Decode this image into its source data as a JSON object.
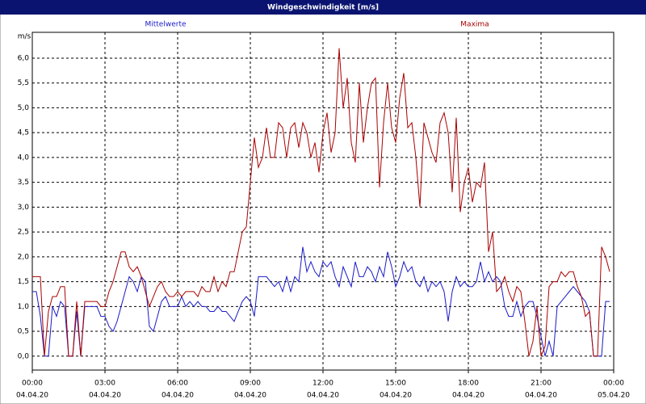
{
  "chart_data": {
    "type": "line",
    "title": "Windgeschwindigkeit [m/s]",
    "y_label": "m/s",
    "x": [
      0,
      10,
      20,
      30,
      40,
      50,
      60,
      70,
      80,
      90,
      100,
      110,
      120,
      130,
      140,
      150,
      160,
      170,
      180,
      190,
      200,
      210,
      220,
      230,
      240,
      250,
      260,
      270,
      280,
      290,
      300,
      310,
      320,
      330,
      340,
      350,
      360,
      370,
      380,
      390,
      400,
      410,
      420,
      430,
      440,
      450,
      460,
      470,
      480,
      490,
      500,
      510,
      520,
      530,
      540,
      550,
      560,
      570,
      580,
      590,
      600,
      610,
      620,
      630,
      640,
      650,
      660,
      670,
      680,
      690,
      700,
      710,
      720,
      730,
      740,
      750,
      760,
      770,
      780,
      790,
      800,
      810,
      820,
      830,
      840,
      850,
      860,
      870,
      880,
      890,
      900,
      910,
      920,
      930,
      940,
      950,
      960,
      970,
      980,
      990,
      1000,
      1010,
      1020,
      1030,
      1040,
      1050,
      1060,
      1070,
      1080,
      1090,
      1100,
      1110,
      1120,
      1130,
      1140,
      1150,
      1160,
      1170,
      1180,
      1190,
      1200,
      1210,
      1220,
      1230,
      1240,
      1250,
      1260,
      1270,
      1280,
      1290,
      1300,
      1310,
      1320,
      1330,
      1340,
      1350,
      1360,
      1370,
      1380,
      1390,
      1400,
      1410,
      1420,
      1430
    ],
    "series": [
      {
        "name": "Mittelwerte",
        "color": "#1a1ac8",
        "values": [
          1.3,
          1.3,
          0.8,
          0.0,
          0.0,
          1.0,
          0.8,
          1.1,
          1.0,
          0.0,
          0.0,
          0.9,
          0.0,
          1.0,
          1.0,
          1.0,
          1.0,
          0.8,
          0.8,
          0.6,
          0.5,
          0.7,
          1.0,
          1.3,
          1.6,
          1.5,
          1.3,
          1.6,
          1.5,
          0.6,
          0.5,
          0.8,
          1.1,
          1.2,
          1.0,
          1.0,
          1.0,
          1.2,
          1.0,
          1.1,
          1.0,
          1.1,
          1.0,
          1.0,
          0.9,
          0.9,
          1.0,
          0.9,
          0.9,
          0.8,
          0.7,
          0.9,
          1.1,
          1.2,
          1.1,
          0.8,
          1.6,
          1.6,
          1.6,
          1.5,
          1.4,
          1.5,
          1.3,
          1.6,
          1.3,
          1.6,
          1.5,
          2.2,
          1.7,
          1.9,
          1.7,
          1.6,
          1.9,
          1.8,
          1.9,
          1.6,
          1.4,
          1.8,
          1.6,
          1.4,
          1.9,
          1.6,
          1.6,
          1.8,
          1.7,
          1.5,
          1.8,
          1.6,
          2.1,
          1.8,
          1.4,
          1.6,
          1.9,
          1.7,
          1.8,
          1.5,
          1.4,
          1.6,
          1.3,
          1.5,
          1.4,
          1.5,
          1.3,
          0.7,
          1.3,
          1.6,
          1.4,
          1.5,
          1.4,
          1.4,
          1.5,
          1.9,
          1.5,
          1.7,
          1.5,
          1.6,
          1.5,
          1.0,
          0.8,
          0.8,
          1.1,
          0.8,
          1.0,
          1.1,
          1.1,
          0.8,
          0.4,
          0.0,
          0.3,
          0.0,
          1.0,
          1.1,
          1.2,
          1.3,
          1.4,
          1.3,
          1.2,
          1.1,
          0.9,
          0.0,
          0.0,
          0.0,
          1.1,
          1.1
        ]
      },
      {
        "name": "Maxima",
        "color": "#a80000",
        "values": [
          1.6,
          1.6,
          1.6,
          0.0,
          0.9,
          1.2,
          1.2,
          1.4,
          1.4,
          0.0,
          0.0,
          1.1,
          0.0,
          1.1,
          1.1,
          1.1,
          1.1,
          1.0,
          1.0,
          1.3,
          1.5,
          1.8,
          2.1,
          2.1,
          1.8,
          1.7,
          1.8,
          1.6,
          1.3,
          1.0,
          1.2,
          1.4,
          1.5,
          1.3,
          1.2,
          1.2,
          1.3,
          1.2,
          1.3,
          1.3,
          1.3,
          1.2,
          1.4,
          1.3,
          1.3,
          1.6,
          1.3,
          1.5,
          1.4,
          1.7,
          1.7,
          2.1,
          2.5,
          2.6,
          3.5,
          4.4,
          3.8,
          4.0,
          4.6,
          4.0,
          4.0,
          4.7,
          4.6,
          4.0,
          4.6,
          4.7,
          4.2,
          4.7,
          4.5,
          4.0,
          4.3,
          3.7,
          4.5,
          4.9,
          4.1,
          4.5,
          6.2,
          5.0,
          5.6,
          4.3,
          3.9,
          5.5,
          4.3,
          5.0,
          5.5,
          5.6,
          3.4,
          4.7,
          5.5,
          4.6,
          4.3,
          5.2,
          5.7,
          4.6,
          4.7,
          4.0,
          3.0,
          4.7,
          4.4,
          4.1,
          3.9,
          4.7,
          4.9,
          4.5,
          3.3,
          4.8,
          2.9,
          3.5,
          3.8,
          3.1,
          3.5,
          3.4,
          3.9,
          2.1,
          2.5,
          1.3,
          1.4,
          1.6,
          1.3,
          1.1,
          1.4,
          1.3,
          0.7,
          0.0,
          0.3,
          1.0,
          0.0,
          0.2,
          1.4,
          1.5,
          1.5,
          1.7,
          1.6,
          1.7,
          1.7,
          1.4,
          1.2,
          0.8,
          0.9,
          0.0,
          0.0,
          2.2,
          2.0,
          1.7
        ]
      }
    ],
    "xlim": [
      0,
      1440
    ],
    "xticks": [
      {
        "value": 0,
        "label": "00:00",
        "date": "04.04.20"
      },
      {
        "value": 180,
        "label": "03:00",
        "date": "04.04.20"
      },
      {
        "value": 360,
        "label": "06:00",
        "date": "04.04.20"
      },
      {
        "value": 540,
        "label": "09:00",
        "date": "04.04.20"
      },
      {
        "value": 720,
        "label": "12:00",
        "date": "04.04.20"
      },
      {
        "value": 900,
        "label": "15:00",
        "date": "04.04.20"
      },
      {
        "value": 1080,
        "label": "18:00",
        "date": "04.04.20"
      },
      {
        "value": 1260,
        "label": "21:00",
        "date": "04.04.20"
      },
      {
        "value": 1440,
        "label": "00:00",
        "date": "05.04.20"
      }
    ],
    "ylim": [
      -0.28,
      6.52
    ],
    "yticks": [
      {
        "value": 0,
        "label": "0,0"
      },
      {
        "value": 0.5,
        "label": "0,5"
      },
      {
        "value": 1,
        "label": "1,0"
      },
      {
        "value": 1.5,
        "label": "1,5"
      },
      {
        "value": 2,
        "label": "2,0"
      },
      {
        "value": 2.5,
        "label": "2,5"
      },
      {
        "value": 3,
        "label": "3,0"
      },
      {
        "value": 3.5,
        "label": "3,5"
      },
      {
        "value": 4,
        "label": "4,0"
      },
      {
        "value": 4.5,
        "label": "4,5"
      },
      {
        "value": 5,
        "label": "5,0"
      },
      {
        "value": 5.5,
        "label": "5,5"
      },
      {
        "value": 6,
        "label": "6,0"
      }
    ],
    "grid": true
  }
}
